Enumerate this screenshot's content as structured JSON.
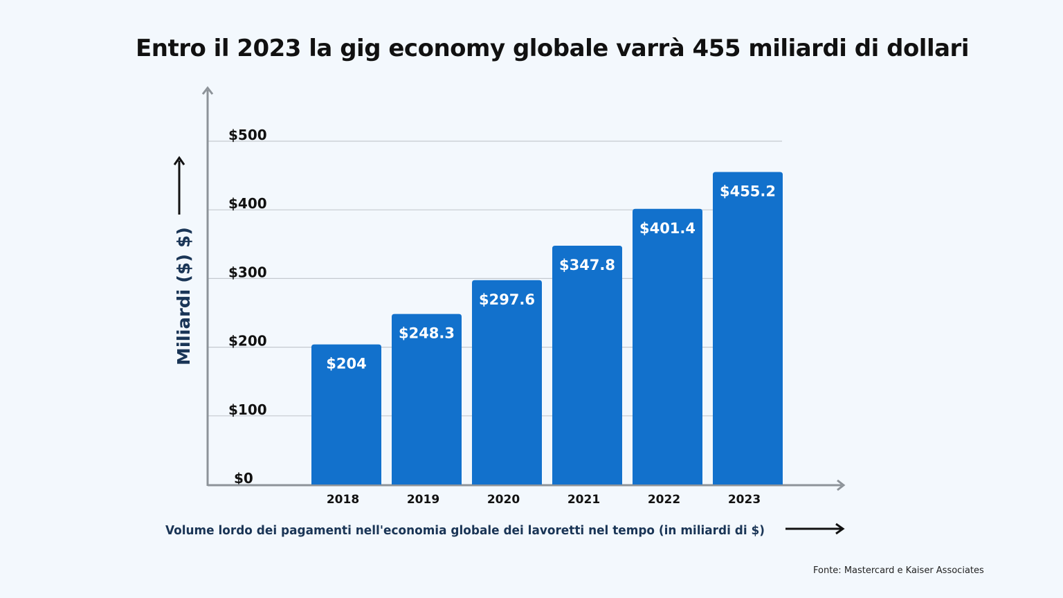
{
  "chart_data": {
    "type": "bar",
    "title": "Entro il 2023 la gig economy globale varrà 455 miliardi di dollari",
    "xlabel": "Volume lordo dei pagamenti nell'economia globale dei lavoretti nel tempo (in miliardi di $)",
    "ylabel": "Miliardi ($) $)",
    "categories": [
      "2018",
      "2019",
      "2020",
      "2021",
      "2022",
      "2023"
    ],
    "values": [
      204,
      248.3,
      297.6,
      347.8,
      401.4,
      455.2
    ],
    "data_labels": [
      "$204",
      "$248.3",
      "$297.6",
      "$347.8",
      "$401.4",
      "$455.2"
    ],
    "yticks": [
      0,
      100,
      200,
      300,
      400,
      500
    ],
    "ytick_labels": [
      "$0",
      "$100",
      "$200",
      "$300",
      "$400",
      "$500"
    ],
    "ylim": [
      0,
      500
    ],
    "grid": true,
    "bar_color": "#1271cc",
    "source": "Fonte: Mastercard e Kaiser Associates"
  }
}
